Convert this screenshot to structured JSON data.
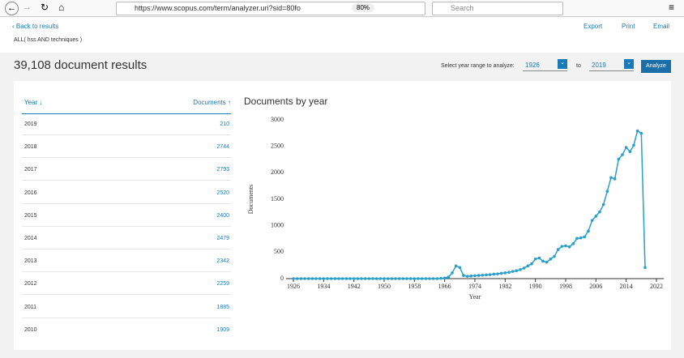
{
  "browser": {
    "url": "https://www.scopus.com/term/analyzer.uri?sid=80fo",
    "zoom": "80%",
    "search": "Search"
  },
  "header": {
    "back": "Back to results",
    "query": "ALL( hss AND techniques )",
    "export": "Export",
    "print": "Print",
    "email": "Email",
    "results": "39,108 document results",
    "range_label": "Select year range to analyze:",
    "from": "1926",
    "to_label": "to",
    "to": "2019",
    "button": "Analyze"
  },
  "table": {
    "headers": [
      "Year",
      "Documents"
    ],
    "rows": [
      [
        "2019",
        "210"
      ],
      [
        "2018",
        "2744"
      ],
      [
        "2017",
        "2793"
      ],
      [
        "2016",
        "2520"
      ],
      [
        "2015",
        "2400"
      ],
      [
        "2014",
        "2479"
      ],
      [
        "2013",
        "2342"
      ],
      [
        "2012",
        "2259"
      ],
      [
        "2011",
        "1885"
      ],
      [
        "2010",
        "1909"
      ]
    ]
  },
  "chart_data": {
    "type": "line",
    "title": "Documents by year",
    "x_label": "Year",
    "y_label": "Documents",
    "x": [
      1926,
      1927,
      1928,
      1929,
      1930,
      1931,
      1932,
      1933,
      1934,
      1935,
      1936,
      1937,
      1938,
      1939,
      1940,
      1941,
      1942,
      1943,
      1944,
      1945,
      1946,
      1947,
      1948,
      1949,
      1950,
      1951,
      1952,
      1953,
      1954,
      1955,
      1956,
      1957,
      1958,
      1959,
      1960,
      1961,
      1962,
      1963,
      1964,
      1965,
      1966,
      1967,
      1968,
      1969,
      1970,
      1971,
      1972,
      1973,
      1974,
      1975,
      1976,
      1977,
      1978,
      1979,
      1980,
      1981,
      1982,
      1983,
      1984,
      1985,
      1986,
      1987,
      1988,
      1989,
      1990,
      1991,
      1992,
      1993,
      1994,
      1995,
      1996,
      1997,
      1998,
      1999,
      2000,
      2001,
      2002,
      2003,
      2004,
      2005,
      2006,
      2007,
      2008,
      2009,
      2010,
      2011,
      2012,
      2013,
      2014,
      2015,
      2016,
      2017,
      2018,
      2019
    ],
    "series": [
      {
        "name": "Documents",
        "color": "#2a9fc9",
        "values": [
          0,
          0,
          0,
          0,
          0,
          0,
          0,
          0,
          0,
          0,
          0,
          0,
          0,
          0,
          0,
          0,
          0,
          0,
          0,
          0,
          0,
          0,
          0,
          0,
          0,
          0,
          0,
          0,
          0,
          0,
          0,
          0,
          0,
          0,
          0,
          0,
          0,
          0,
          0,
          5,
          10,
          30,
          110,
          240,
          210,
          60,
          45,
          50,
          55,
          60,
          65,
          70,
          75,
          85,
          90,
          100,
          110,
          120,
          135,
          150,
          170,
          200,
          240,
          280,
          370,
          390,
          330,
          310,
          370,
          420,
          550,
          610,
          620,
          600,
          660,
          760,
          770,
          790,
          900,
          1100,
          1180,
          1260,
          1400,
          1650,
          1909,
          1885,
          2259,
          2342,
          2479,
          2400,
          2520,
          2793,
          2744,
          210
        ]
      }
    ],
    "xlim": [
      1924,
      2024
    ],
    "xticks": [
      1926,
      1934,
      1942,
      1950,
      1958,
      1966,
      1974,
      1982,
      1990,
      1998,
      2006,
      2014,
      2022
    ],
    "ylim": [
      0,
      3000
    ],
    "yticks": [
      0,
      500,
      1000,
      1500,
      2000,
      2500,
      3000
    ]
  }
}
